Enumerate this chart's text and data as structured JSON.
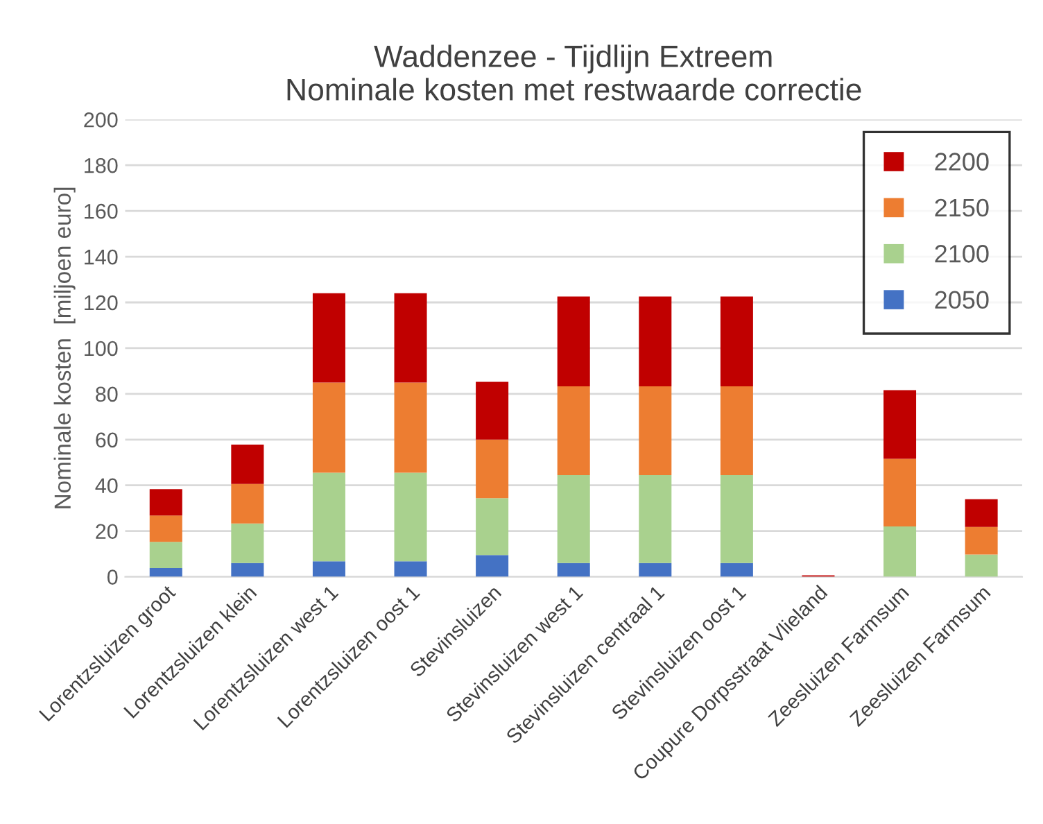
{
  "chart_data": {
    "type": "bar",
    "stacked": true,
    "title": "Waddenzee - Tijdlijn Extreem\nNominale kosten met restwaarde correctie",
    "ylabel": "Nominale kosten  [miljoen euro]",
    "categories": [
      "Lorentzsluizen groot",
      "Lorentzsluizen klein",
      "Lorentzsluizen west 1",
      "Lorentzsluizen oost 1",
      "Stevinsluizen",
      "Stevinsluizen west 1",
      "Stevinsluizen centraal 1",
      "Stevinsluizen oost 1",
      "Coupure Dorpsstraat Vlieland",
      "Zeesluizen Farmsum",
      "Zeesluizen Farmsum"
    ],
    "series": [
      {
        "name": "2050",
        "color": "#4472c4",
        "values": [
          3.8,
          6.0,
          6.8,
          6.8,
          9.5,
          6.0,
          6.0,
          6.0,
          0,
          0,
          0
        ]
      },
      {
        "name": "2100",
        "color": "#a9d18e",
        "values": [
          11.5,
          17.3,
          38.7,
          38.7,
          24.9,
          38.5,
          38.5,
          38.5,
          0,
          22,
          9.7
        ]
      },
      {
        "name": "2150",
        "color": "#ed7d31",
        "values": [
          11.5,
          17.3,
          39.5,
          39.5,
          25.6,
          38.8,
          38.8,
          38.8,
          0,
          29.6,
          12.1
        ]
      },
      {
        "name": "2200",
        "color": "#c00000",
        "values": [
          11.5,
          17.2,
          39,
          39,
          25.3,
          39.3,
          39.3,
          39.3,
          0.6,
          30,
          12.1
        ]
      }
    ],
    "ylim": [
      0,
      200
    ],
    "yticks": [
      0,
      20,
      40,
      60,
      80,
      100,
      120,
      140,
      160,
      180,
      200
    ],
    "grid": "y",
    "legend": "top right"
  }
}
